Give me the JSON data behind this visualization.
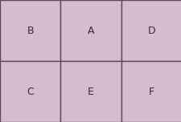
{
  "layout": [
    [
      "B",
      "A",
      "D"
    ],
    [
      "C",
      "E",
      "F"
    ]
  ],
  "cell_facecolor": "#d4bdd0",
  "cell_edgecolor": "#5a4a5a",
  "label_color": "#3a2a3a",
  "label_fontsize": 9,
  "background_color": "#d4bdd0",
  "grid_rows": 2,
  "grid_cols": 3,
  "cell_lw": 1.0
}
